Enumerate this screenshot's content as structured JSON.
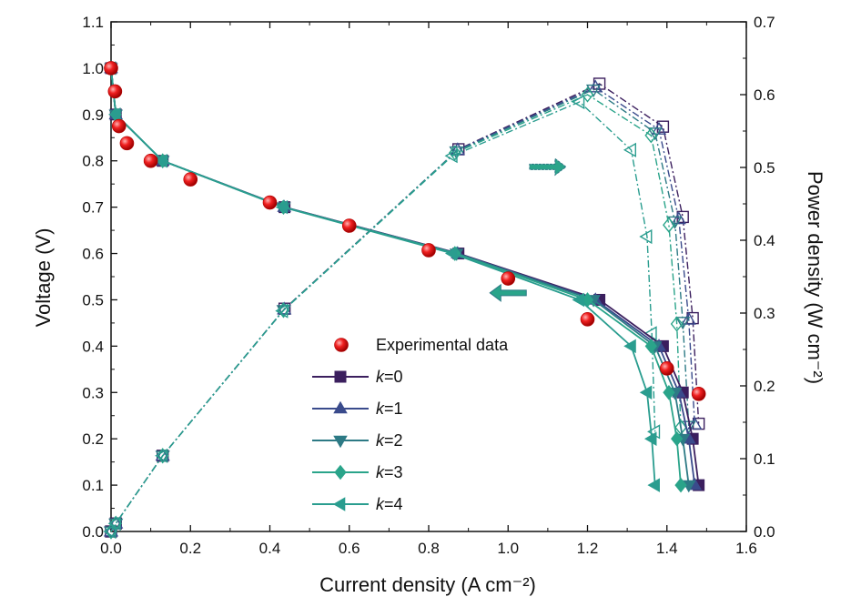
{
  "chart_data": {
    "type": "line",
    "xlabel": "Current density (A cm⁻²)",
    "ylabel_left": "Voltage (V)",
    "ylabel_right": "Power density (W cm⁻²)",
    "xlim": [
      0.0,
      1.6
    ],
    "ylim_left": [
      0.0,
      1.1
    ],
    "ylim_right": [
      0.0,
      0.7
    ],
    "x_ticks": [
      "0.0",
      "0.2",
      "0.4",
      "0.6",
      "0.8",
      "1.0",
      "1.2",
      "1.4",
      "1.6"
    ],
    "y_left_ticks": [
      "0.0",
      "0.1",
      "0.2",
      "0.3",
      "0.4",
      "0.5",
      "0.6",
      "0.7",
      "0.8",
      "0.9",
      "1.0",
      "1.1"
    ],
    "y_right_ticks": [
      "0.0",
      "0.1",
      "0.2",
      "0.3",
      "0.4",
      "0.5",
      "0.6",
      "0.7"
    ],
    "legend_position": "bottom-center",
    "colors": {
      "experimental": "#e8141a",
      "k0": "#3b1f5e",
      "k1": "#3a4b8c",
      "k2": "#2d7a85",
      "k3": "#2aa48a",
      "k4": "#2a9d8f"
    },
    "experimental": {
      "name": "Experimental data",
      "x": [
        0.0,
        0.01,
        0.02,
        0.04,
        0.1,
        0.2,
        0.4,
        0.6,
        0.8,
        1.0,
        1.2,
        1.4,
        1.48
      ],
      "y": [
        1.0,
        0.95,
        0.875,
        0.838,
        0.8,
        0.76,
        0.71,
        0.66,
        0.607,
        0.546,
        0.458,
        0.352,
        0.297
      ]
    },
    "polarization_series": [
      {
        "name": "k=0",
        "marker": "square",
        "x": [
          0.0,
          0.012,
          0.13,
          0.437,
          0.875,
          1.23,
          1.39,
          1.44,
          1.465,
          1.48
        ],
        "y": [
          1.0,
          0.9,
          0.8,
          0.7,
          0.6,
          0.5,
          0.4,
          0.3,
          0.2,
          0.1
        ]
      },
      {
        "name": "k=1",
        "marker": "triangle-up",
        "x": [
          0.0,
          0.012,
          0.13,
          0.436,
          0.873,
          1.22,
          1.38,
          1.43,
          1.455,
          1.47
        ],
        "y": [
          1.0,
          0.9,
          0.8,
          0.7,
          0.6,
          0.5,
          0.4,
          0.3,
          0.2,
          0.1
        ]
      },
      {
        "name": "k=2",
        "marker": "triangle-down",
        "x": [
          0.0,
          0.012,
          0.13,
          0.435,
          0.87,
          1.215,
          1.37,
          1.42,
          1.44,
          1.455
        ],
        "y": [
          1.0,
          0.9,
          0.8,
          0.7,
          0.6,
          0.5,
          0.4,
          0.3,
          0.2,
          0.1
        ]
      },
      {
        "name": "k=3",
        "marker": "diamond",
        "x": [
          0.0,
          0.012,
          0.13,
          0.434,
          0.866,
          1.2,
          1.36,
          1.405,
          1.425,
          1.435
        ],
        "y": [
          1.0,
          0.9,
          0.8,
          0.7,
          0.6,
          0.5,
          0.4,
          0.3,
          0.2,
          0.1
        ]
      },
      {
        "name": "k=4",
        "marker": "triangle-left",
        "x": [
          0.0,
          0.012,
          0.13,
          0.433,
          0.86,
          1.18,
          1.31,
          1.35,
          1.362,
          1.37
        ],
        "y": [
          1.0,
          0.9,
          0.8,
          0.7,
          0.6,
          0.5,
          0.4,
          0.3,
          0.2,
          0.1
        ]
      }
    ],
    "power_series": [
      {
        "name": "k=0",
        "x": [
          0.0,
          0.012,
          0.13,
          0.437,
          0.875,
          1.23,
          1.39,
          1.44,
          1.465,
          1.48
        ],
        "y": [
          0.0,
          0.011,
          0.104,
          0.306,
          0.525,
          0.615,
          0.556,
          0.432,
          0.293,
          0.148
        ]
      },
      {
        "name": "k=1",
        "x": [
          0.0,
          0.012,
          0.13,
          0.436,
          0.873,
          1.22,
          1.38,
          1.43,
          1.455,
          1.47
        ],
        "y": [
          0.0,
          0.011,
          0.104,
          0.305,
          0.524,
          0.61,
          0.552,
          0.429,
          0.291,
          0.147
        ]
      },
      {
        "name": "k=2",
        "x": [
          0.0,
          0.012,
          0.13,
          0.435,
          0.87,
          1.215,
          1.37,
          1.42,
          1.44,
          1.455
        ],
        "y": [
          0.0,
          0.011,
          0.104,
          0.304,
          0.522,
          0.607,
          0.548,
          0.426,
          0.288,
          0.145
        ]
      },
      {
        "name": "k=3",
        "x": [
          0.0,
          0.012,
          0.13,
          0.434,
          0.866,
          1.2,
          1.36,
          1.405,
          1.425,
          1.435
        ],
        "y": [
          0.0,
          0.011,
          0.104,
          0.304,
          0.52,
          0.6,
          0.544,
          0.421,
          0.285,
          0.143
        ]
      },
      {
        "name": "k=4",
        "x": [
          0.0,
          0.012,
          0.13,
          0.433,
          0.86,
          1.18,
          1.31,
          1.35,
          1.362,
          1.37
        ],
        "y": [
          0.0,
          0.011,
          0.104,
          0.303,
          0.516,
          0.59,
          0.524,
          0.405,
          0.272,
          0.137
        ]
      }
    ],
    "annotations": [
      {
        "name": "arrow-left-to-voltage-axis",
        "x": 1.0,
        "y_left": 0.515,
        "direction": "left"
      },
      {
        "name": "arrow-right-to-power-axis",
        "x": 1.1,
        "y_left": 0.787,
        "direction": "right"
      }
    ]
  }
}
